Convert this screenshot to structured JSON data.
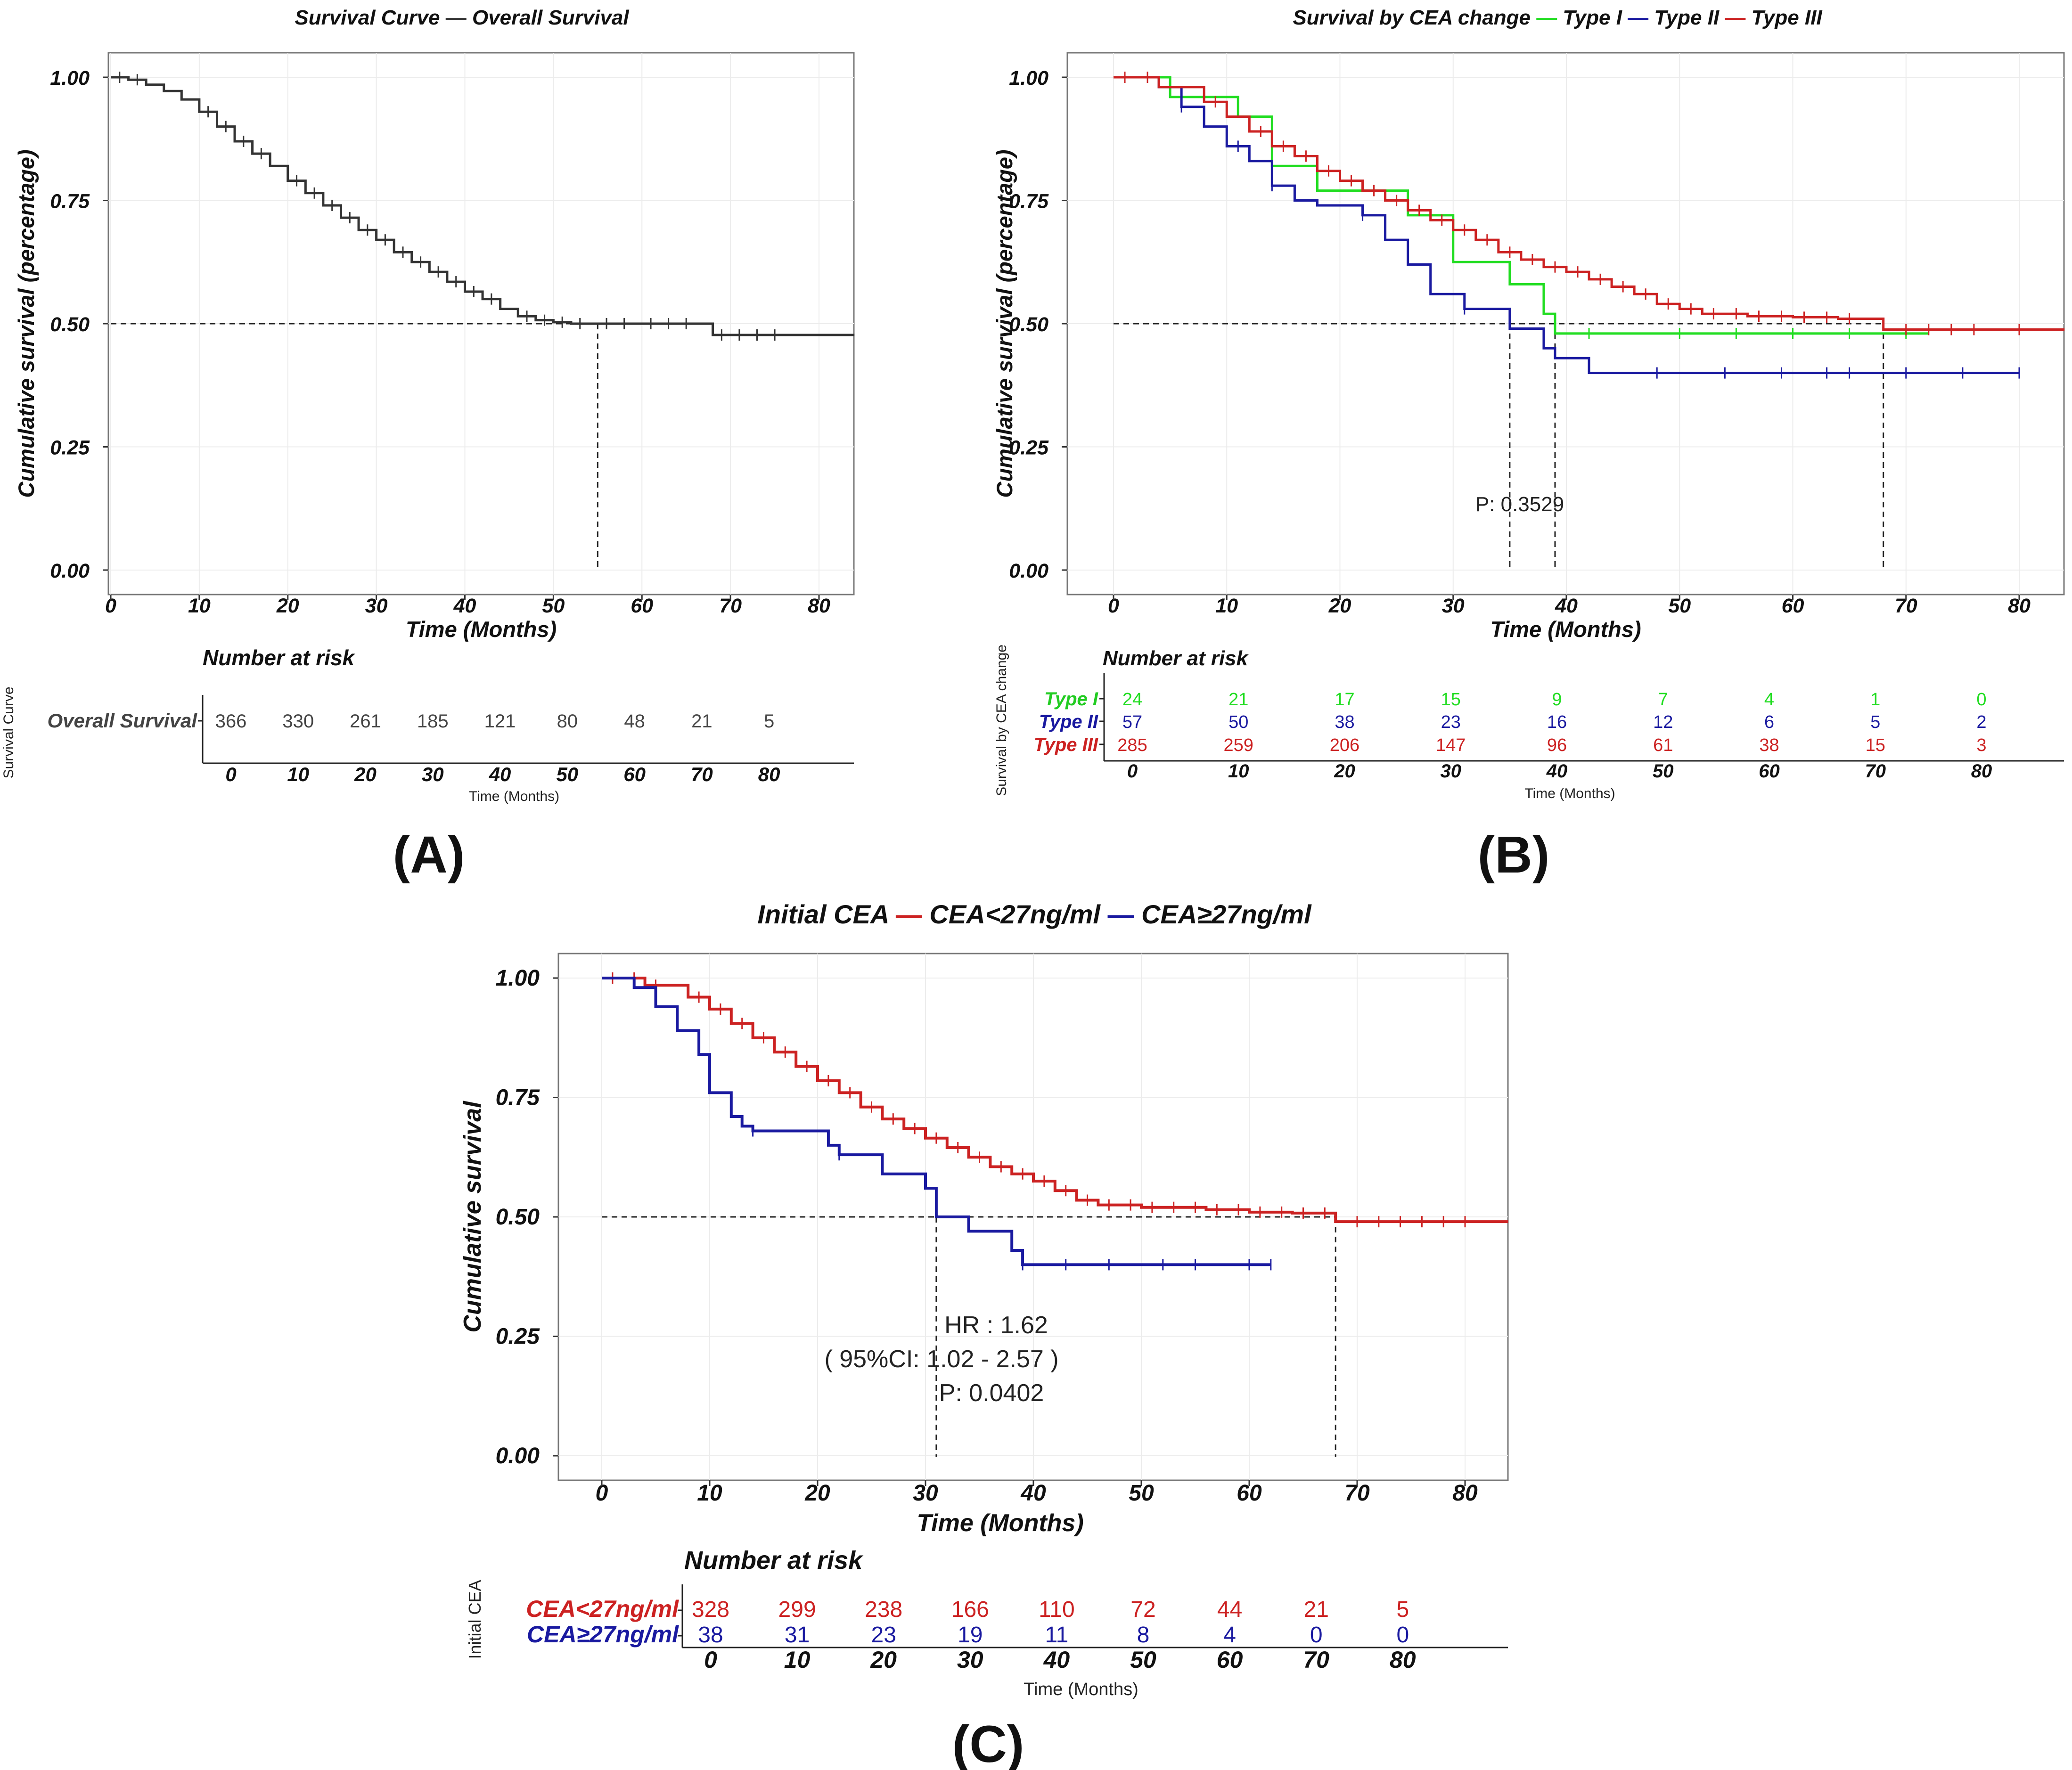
{
  "chart_data": [
    {
      "id": "A",
      "type": "line",
      "subtype": "kaplan-meier",
      "panel_label": "(A)",
      "title": "Survival Curve",
      "legend": [
        {
          "name": "Overall Survival",
          "color": "#333333"
        }
      ],
      "xlabel": "Time (Months)",
      "ylabel": "Cumulative survival (percentage)",
      "xlim": [
        -3,
        84
      ],
      "ylim": [
        0,
        1
      ],
      "x_ticks": [
        0,
        10,
        20,
        30,
        40,
        50,
        60,
        70,
        80
      ],
      "y_ticks": [
        "0.00",
        "0.25",
        "0.50",
        "0.75",
        "1.00"
      ],
      "median_line": {
        "y": 0.5,
        "x": [
          55
        ]
      },
      "series": [
        {
          "name": "Overall Survival",
          "color": "#333333",
          "x": [
            0,
            2,
            4,
            6,
            8,
            10,
            12,
            14,
            16,
            18,
            20,
            22,
            24,
            26,
            28,
            30,
            32,
            34,
            36,
            38,
            40,
            42,
            44,
            46,
            48,
            50,
            52,
            55,
            60,
            64,
            68,
            84
          ],
          "y": [
            1.0,
            0.995,
            0.985,
            0.972,
            0.955,
            0.93,
            0.9,
            0.87,
            0.845,
            0.82,
            0.79,
            0.765,
            0.74,
            0.715,
            0.69,
            0.67,
            0.645,
            0.625,
            0.605,
            0.585,
            0.565,
            0.55,
            0.53,
            0.515,
            0.507,
            0.503,
            0.5,
            0.5,
            0.5,
            0.5,
            0.477,
            0.477
          ],
          "censor_x": [
            1,
            3,
            11,
            13,
            15,
            17,
            21,
            23,
            25,
            27,
            29,
            31,
            33,
            35,
            37,
            39,
            41,
            43,
            47,
            49,
            51,
            53,
            56,
            58,
            61,
            63,
            65,
            69,
            71,
            73,
            75
          ]
        }
      ],
      "risk_table": {
        "title": "Number at risk",
        "side_label": "Survival Curve",
        "xlabel": "Time (Months)",
        "x_ticks": [
          0,
          10,
          20,
          30,
          40,
          50,
          60,
          70,
          80
        ],
        "rows": [
          {
            "label": "Overall Survival",
            "color": "#444444",
            "label_color": "#444444",
            "values": [
              366,
              330,
              261,
              185,
              121,
              80,
              48,
              21,
              5
            ]
          }
        ]
      }
    },
    {
      "id": "B",
      "type": "line",
      "subtype": "kaplan-meier",
      "panel_label": "(B)",
      "title": "Survival by CEA change",
      "legend": [
        {
          "name": "Type I",
          "color": "#22dd22"
        },
        {
          "name": "Type II",
          "color": "#1a1aa0"
        },
        {
          "name": "Type III",
          "color": "#cc2222"
        }
      ],
      "xlabel": "Time (Months)",
      "ylabel": "Cumulative survival (percentage)",
      "xlim": [
        -4,
        84
      ],
      "ylim": [
        0,
        1
      ],
      "x_ticks": [
        0,
        10,
        20,
        30,
        40,
        50,
        60,
        70,
        80
      ],
      "y_ticks": [
        "0.00",
        "0.25",
        "0.50",
        "0.75",
        "1.00"
      ],
      "annotations": [
        "P: 0.3529"
      ],
      "median_line": {
        "y": 0.5,
        "x": [
          35,
          39,
          68
        ]
      },
      "series": [
        {
          "name": "Type I",
          "color": "#22dd22",
          "x": [
            0,
            5,
            11,
            14,
            18,
            26,
            30,
            35,
            38,
            39,
            72
          ],
          "y": [
            1.0,
            0.96,
            0.92,
            0.82,
            0.77,
            0.72,
            0.625,
            0.58,
            0.52,
            0.48,
            0.48
          ],
          "censor_x": [
            42,
            50,
            55,
            60,
            65,
            70
          ]
        },
        {
          "name": "Type II",
          "color": "#1a1aa0",
          "x": [
            0,
            4,
            6,
            8,
            10,
            12,
            14,
            16,
            18,
            22,
            24,
            26,
            28,
            31,
            35,
            38,
            39,
            42,
            80
          ],
          "y": [
            1.0,
            0.98,
            0.94,
            0.9,
            0.86,
            0.83,
            0.78,
            0.75,
            0.74,
            0.72,
            0.67,
            0.62,
            0.56,
            0.53,
            0.49,
            0.45,
            0.43,
            0.4,
            0.4
          ],
          "censor_x": [
            6,
            11,
            14,
            22,
            31,
            48,
            54,
            59,
            63,
            65,
            70,
            75,
            80
          ]
        },
        {
          "name": "Type III",
          "color": "#cc2222",
          "x": [
            0,
            4,
            8,
            10,
            12,
            14,
            16,
            18,
            20,
            22,
            24,
            26,
            28,
            30,
            32,
            34,
            36,
            38,
            40,
            42,
            44,
            46,
            48,
            50,
            52,
            56,
            60,
            64,
            68,
            84
          ],
          "y": [
            1.0,
            0.98,
            0.95,
            0.92,
            0.89,
            0.86,
            0.84,
            0.81,
            0.79,
            0.77,
            0.75,
            0.73,
            0.71,
            0.69,
            0.67,
            0.645,
            0.63,
            0.615,
            0.605,
            0.59,
            0.575,
            0.56,
            0.54,
            0.53,
            0.52,
            0.515,
            0.513,
            0.51,
            0.488,
            0.488
          ],
          "censor_x": [
            1,
            3,
            9,
            13,
            15,
            17,
            19,
            21,
            23,
            25,
            27,
            29,
            31,
            33,
            35,
            37,
            39,
            41,
            43,
            45,
            47,
            49,
            51,
            53,
            55,
            57,
            59,
            61,
            63,
            65,
            70,
            72,
            74,
            76,
            80
          ]
        }
      ],
      "risk_table": {
        "title": "Number at risk",
        "side_label": "Survival by CEA change",
        "xlabel": "Time (Months)",
        "x_ticks": [
          0,
          10,
          20,
          30,
          40,
          50,
          60,
          70,
          80
        ],
        "rows": [
          {
            "label": "Type I",
            "color": "#22dd22",
            "label_color": "#22cc22",
            "values": [
              24,
              21,
              17,
              15,
              9,
              7,
              4,
              1,
              0
            ]
          },
          {
            "label": "Type II",
            "color": "#1a1aa0",
            "label_color": "#1a1aa0",
            "values": [
              57,
              50,
              38,
              23,
              16,
              12,
              6,
              5,
              2
            ]
          },
          {
            "label": "Type III",
            "color": "#cc2222",
            "label_color": "#cc2222",
            "values": [
              285,
              259,
              206,
              147,
              96,
              61,
              38,
              15,
              3
            ]
          }
        ]
      }
    },
    {
      "id": "C",
      "type": "line",
      "subtype": "kaplan-meier",
      "panel_label": "(C)",
      "title": "Initial CEA",
      "legend": [
        {
          "name": "CEA<27ng/ml",
          "color": "#cc2222"
        },
        {
          "name": "CEA≥27ng/ml",
          "color": "#1a1aa0"
        }
      ],
      "xlabel": "Time (Months)",
      "ylabel": "Cumulative survival",
      "xlim": [
        -4,
        84
      ],
      "ylim": [
        0,
        1
      ],
      "x_ticks": [
        0,
        10,
        20,
        30,
        40,
        50,
        60,
        70,
        80
      ],
      "y_ticks": [
        "0.00",
        "0.25",
        "0.50",
        "0.75",
        "1.00"
      ],
      "annotations": [
        "HR : 1.62",
        "( 95%CI: 1.02 - 2.57 )",
        "P: 0.0402"
      ],
      "median_line": {
        "y": 0.5,
        "x": [
          31,
          68
        ]
      },
      "series": [
        {
          "name": "CEA<27ng/ml",
          "color": "#cc2222",
          "x": [
            0,
            4,
            8,
            10,
            12,
            14,
            16,
            18,
            20,
            22,
            24,
            26,
            28,
            30,
            32,
            34,
            36,
            38,
            40,
            42,
            44,
            46,
            50,
            56,
            60,
            64,
            68,
            84
          ],
          "y": [
            1.0,
            0.985,
            0.96,
            0.935,
            0.905,
            0.875,
            0.845,
            0.815,
            0.785,
            0.76,
            0.73,
            0.705,
            0.685,
            0.665,
            0.645,
            0.625,
            0.605,
            0.59,
            0.575,
            0.555,
            0.535,
            0.525,
            0.52,
            0.515,
            0.51,
            0.508,
            0.49,
            0.49
          ],
          "censor_x": [
            1,
            3,
            5,
            9,
            11,
            13,
            15,
            17,
            19,
            21,
            23,
            25,
            27,
            29,
            31,
            33,
            35,
            37,
            39,
            41,
            43,
            45,
            47,
            49,
            51,
            53,
            55,
            57,
            59,
            61,
            63,
            65,
            67,
            70,
            72,
            74,
            76,
            78,
            80
          ]
        },
        {
          "name": "CEA≥27ng/ml",
          "color": "#1a1aa0",
          "x": [
            0,
            3,
            5,
            7,
            9,
            10,
            12,
            13,
            14,
            21,
            22,
            26,
            30,
            31,
            34,
            38,
            39,
            62
          ],
          "y": [
            1.0,
            0.98,
            0.94,
            0.89,
            0.84,
            0.76,
            0.71,
            0.69,
            0.68,
            0.65,
            0.63,
            0.59,
            0.56,
            0.5,
            0.47,
            0.43,
            0.4,
            0.4
          ],
          "censor_x": [
            14,
            22,
            39,
            43,
            47,
            52,
            55,
            60,
            62
          ]
        }
      ],
      "risk_table": {
        "title": "Number at risk",
        "side_label": "Initial CEA",
        "xlabel": "Time (Months)",
        "x_ticks": [
          0,
          10,
          20,
          30,
          40,
          50,
          60,
          70,
          80
        ],
        "rows": [
          {
            "label": "CEA<27ng/ml",
            "color": "#cc2222",
            "label_color": "#cc2222",
            "values": [
              328,
              299,
              238,
              166,
              110,
              72,
              44,
              21,
              5
            ]
          },
          {
            "label": "CEA≥27ng/ml",
            "color": "#1a1aa0",
            "label_color": "#1a1aa0",
            "values": [
              38,
              31,
              23,
              19,
              11,
              8,
              4,
              0,
              0
            ]
          }
        ]
      }
    }
  ]
}
